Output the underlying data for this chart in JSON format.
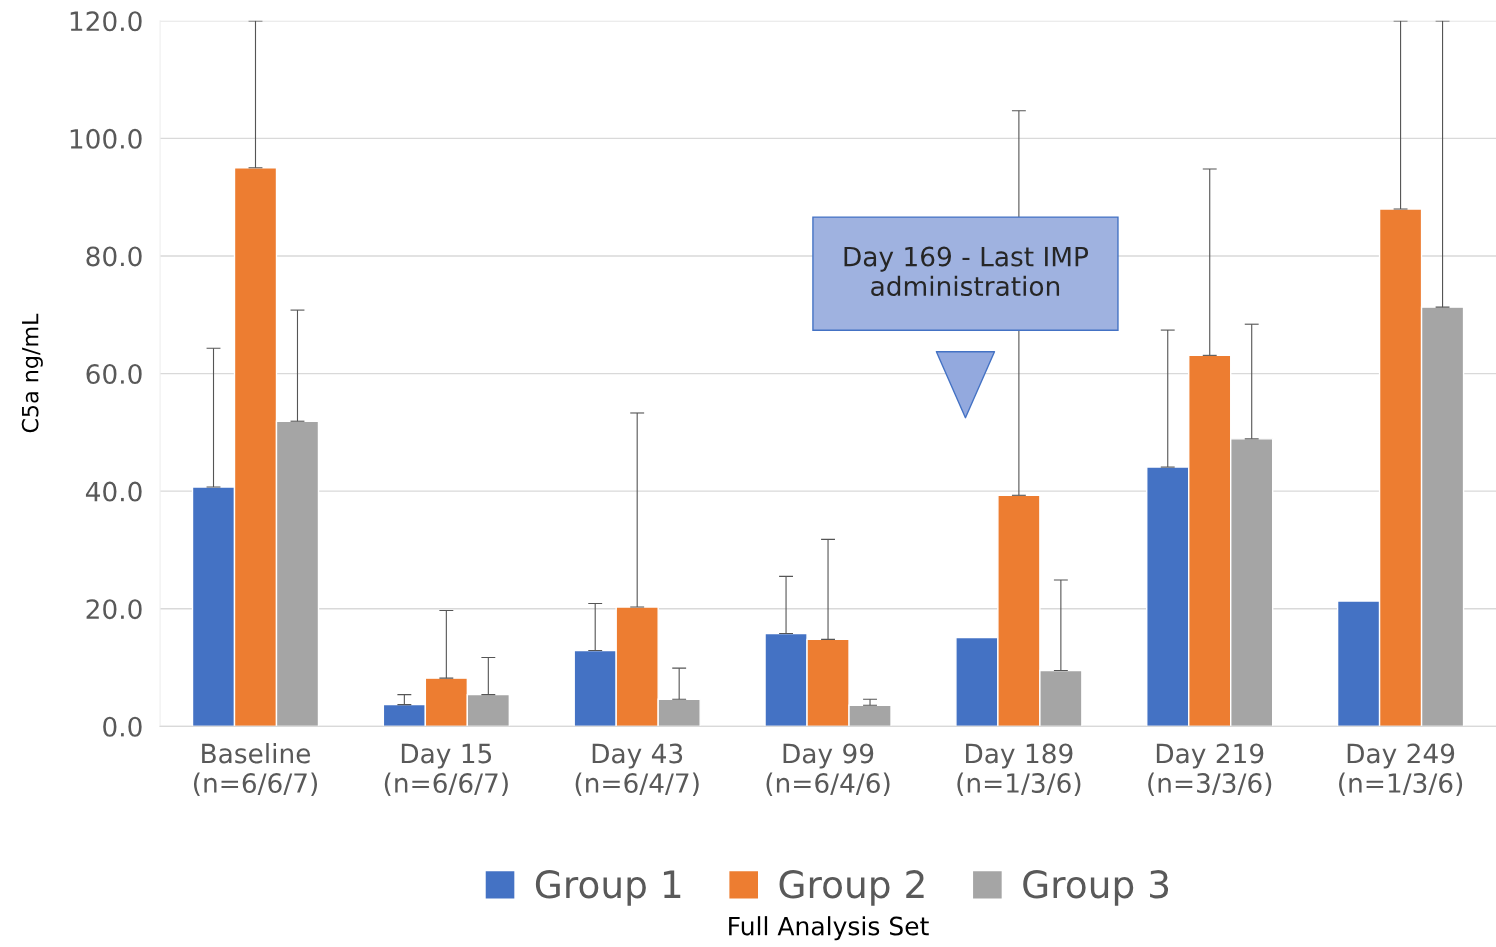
{
  "chart_data": {
    "type": "bar",
    "categories": [
      "Baseline\n(n=6/6/7)",
      "Day 15\n(n=6/6/7)",
      "Day 43\n(n=6/4/7)",
      "Day 99\n(n=6/4/6)",
      "Day 189\n(n=1/3/6)",
      "Day 219\n(n=3/3/6)",
      "Day 249\n(n=1/3/6)"
    ],
    "series": [
      {
        "name": "Group 1",
        "color": "#4472c4",
        "values": [
          40.7,
          3.7,
          12.9,
          15.8,
          15.1,
          44.1,
          21.3
        ],
        "errors": [
          [
            40.7,
            64.3
          ],
          [
            3.7,
            5.4
          ],
          [
            12.9,
            20.9
          ],
          [
            15.8,
            25.5
          ],
          null,
          [
            44.1,
            67.4
          ],
          null
        ]
      },
      {
        "name": "Group 2",
        "color": "#ed7d31",
        "values": [
          95.0,
          8.2,
          20.3,
          14.8,
          39.3,
          63.1,
          88.0
        ],
        "errors": [
          [
            95.0,
            120
          ],
          [
            8.2,
            19.7
          ],
          [
            20.3,
            53.3
          ],
          [
            14.8,
            31.8
          ],
          [
            39.3,
            104.7
          ],
          [
            63.1,
            94.8
          ],
          [
            88.0,
            120
          ]
        ]
      },
      {
        "name": "Group 3",
        "color": "#a5a5a5",
        "values": [
          51.9,
          5.4,
          4.6,
          3.6,
          9.5,
          48.9,
          71.3
        ],
        "errors": [
          [
            51.9,
            70.8
          ],
          [
            5.4,
            11.7
          ],
          [
            4.6,
            9.9
          ],
          [
            3.6,
            4.6
          ],
          [
            9.5,
            24.9
          ],
          [
            48.9,
            68.4
          ],
          [
            71.3,
            120
          ]
        ]
      }
    ],
    "ylabel": "C5a ng/mL",
    "xlabel": "Full Analysis Set",
    "ylim": [
      0,
      120
    ],
    "yticks": [
      {
        "value": 0,
        "label": "0.0"
      },
      {
        "value": 20,
        "label": "20.0"
      },
      {
        "value": 40,
        "label": "40.0"
      },
      {
        "value": 60,
        "label": "60.0"
      },
      {
        "value": 80,
        "label": "80.0"
      },
      {
        "value": 100,
        "label": "100.0"
      },
      {
        "value": 120,
        "label": "120.0"
      }
    ],
    "grid": "y",
    "legend": "bottom",
    "annotations": [
      "Day 169 - Last IMP administration"
    ]
  }
}
